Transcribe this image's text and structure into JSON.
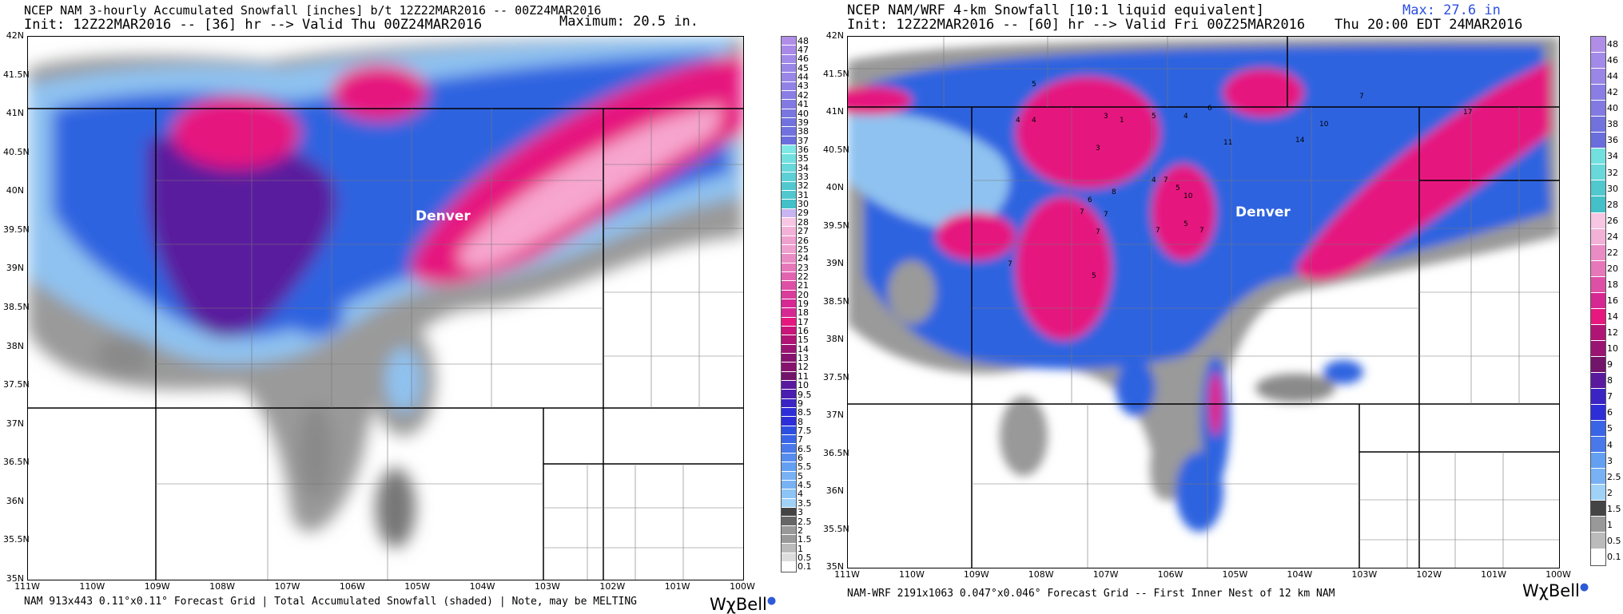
{
  "left": {
    "header_line1": "NCEP NAM 3-hourly Accumulated Snowfall [inches] b/t 12Z22MAR2016 -- 00Z24MAR2016",
    "header_line2": "Init: 12Z22MAR2016 -- [36] hr --> Valid Thu 00Z24MAR2016",
    "maximum": "Maximum: 20.5 in.",
    "footer": "NAM 913x443 0.11°x0.11° Forecast Grid | Total Accumulated Snowfall (shaded) | Note, may be MELTING",
    "city": "Denver",
    "lat_ticks": [
      "42N",
      "41.5N",
      "41N",
      "40.5N",
      "40N",
      "39.5N",
      "39N",
      "38.5N",
      "38N",
      "37.5N",
      "37N",
      "36.5N",
      "36N",
      "35.5N",
      "35N"
    ],
    "lon_ticks": [
      "111W",
      "110W",
      "109W",
      "108W",
      "107W",
      "106W",
      "105W",
      "104W",
      "103W",
      "102W",
      "101W",
      "100W"
    ],
    "colorbar_labels": [
      "48",
      "47",
      "46",
      "45",
      "44",
      "43",
      "42",
      "41",
      "40",
      "39",
      "38",
      "37",
      "36",
      "35",
      "34",
      "33",
      "32",
      "31",
      "30",
      "29",
      "28",
      "27",
      "26",
      "25",
      "24",
      "23",
      "22",
      "21",
      "20",
      "19",
      "18",
      "17",
      "16",
      "15",
      "14",
      "13",
      "12",
      "11",
      "10",
      "9.5",
      "9",
      "8.5",
      "8",
      "7.5",
      "7",
      "6.5",
      "6",
      "5.5",
      "5",
      "4.5",
      "4",
      "3.5",
      "3",
      "2.5",
      "2",
      "1.5",
      "1",
      "0.5",
      "0.1"
    ]
  },
  "right": {
    "header_line1": "NCEP NAM/WRF 4-km Snowfall [10:1 liquid equivalent]",
    "header_line2": "Init: 12Z22MAR2016 -- [60] hr --> Valid Fri 00Z25MAR2016",
    "max": "Max: 27.6 in",
    "valid_local": "Thu 20:00 EDT 24MAR2016",
    "footer": "NAM-WRF 2191x1063 0.047°x0.046° Forecast Grid -- First Inner Nest of 12 km NAM",
    "city": "Denver",
    "lat_ticks": [
      "42N",
      "41.5N",
      "41N",
      "40.5N",
      "40N",
      "39.5N",
      "39N",
      "38.5N",
      "38N",
      "37.5N",
      "37N",
      "36.5N",
      "36N",
      "35.5N",
      "35N"
    ],
    "lon_ticks": [
      "111W",
      "110W",
      "109W",
      "108W",
      "107W",
      "106W",
      "105W",
      "104W",
      "103W",
      "102W",
      "101W",
      "100W"
    ],
    "colorbar_labels": [
      "48",
      "46",
      "44",
      "42",
      "40",
      "38",
      "36",
      "34",
      "32",
      "30",
      "28",
      "26",
      "24",
      "22",
      "20",
      "18",
      "16",
      "14",
      "12",
      "10",
      "9",
      "8",
      "7",
      "6",
      "5",
      "4",
      "3",
      "2.5",
      "2",
      "1.5",
      "1",
      "0.5",
      "0.1"
    ],
    "map_labels": [
      "5",
      "3",
      "5",
      "6",
      "4",
      "14",
      "7",
      "17",
      "4",
      "4",
      "1",
      "10",
      "3",
      "11",
      "4",
      "5",
      "6",
      "7",
      "7",
      "7",
      "8",
      "10",
      "5",
      "7",
      "5",
      "7",
      "7",
      "7"
    ]
  },
  "brand": "WχBell",
  "colors": {
    "blue_dark": "#1f49d6",
    "blue_light": "#8fc2f0",
    "magenta": "#e6187f",
    "pink_light": "#f6a6cf",
    "purple": "#5a1a9e",
    "gray": "#8a8a8a",
    "gray_dark": "#555555"
  }
}
